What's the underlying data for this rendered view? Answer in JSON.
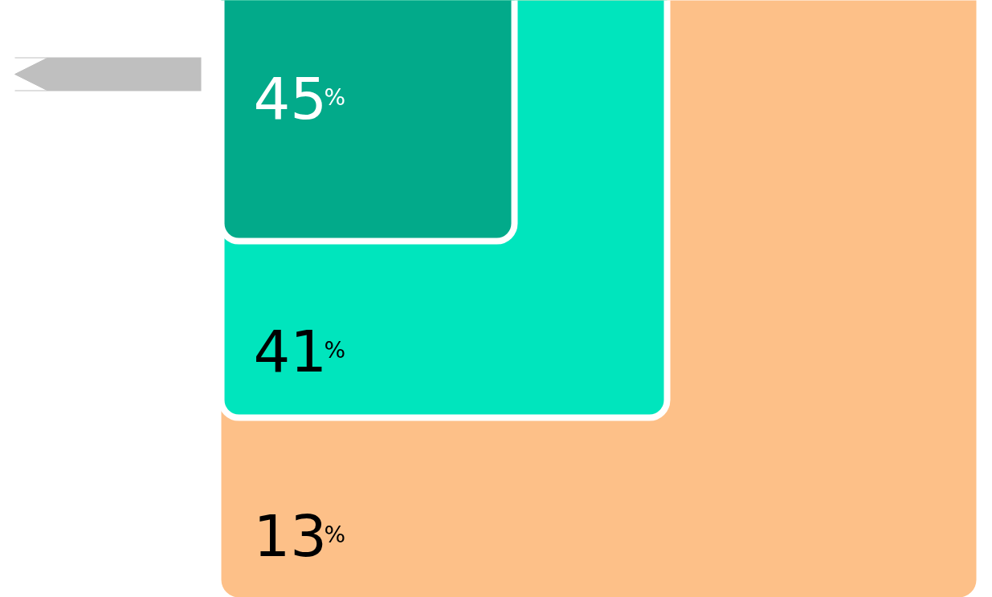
{
  "chart_data": {
    "type": "other",
    "categories": [
      null,
      null,
      null
    ],
    "values": [
      45,
      41,
      13
    ],
    "colors": [
      "#02aa8a",
      "#00e5bd",
      "#fdc088"
    ],
    "value_labels": [
      "45%",
      "41%",
      "13%"
    ]
  }
}
